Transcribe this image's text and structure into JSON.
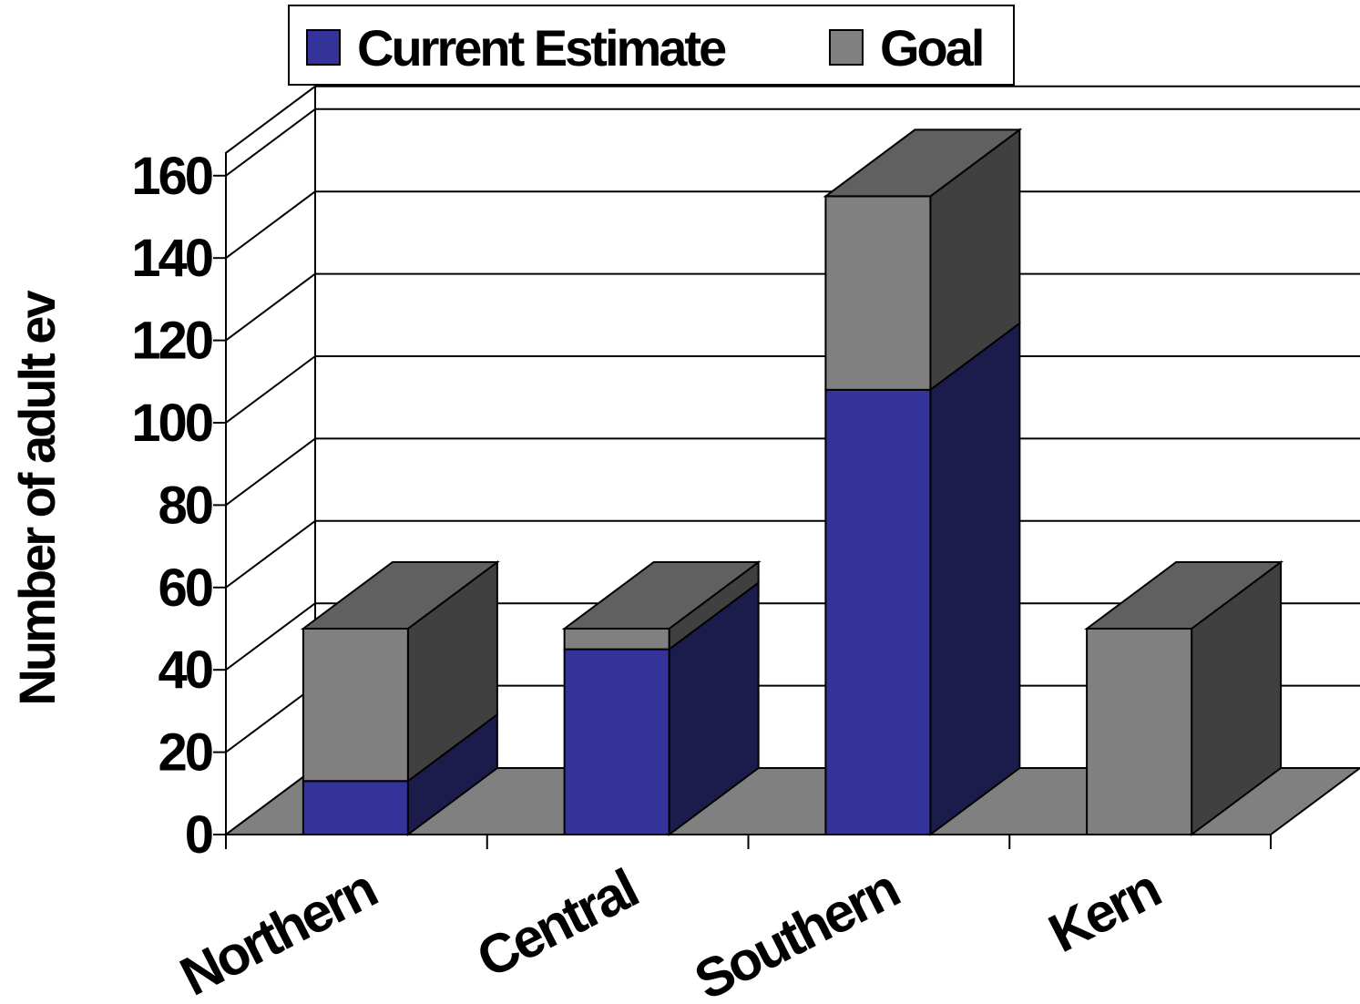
{
  "chart_data": {
    "type": "bar",
    "stacked": true,
    "three_d": true,
    "categories": [
      "Northern",
      "Central",
      "Southern",
      "Kern"
    ],
    "series": [
      {
        "name": "Current Estimate",
        "values": [
          13,
          45,
          108,
          0
        ]
      },
      {
        "name": "Goal",
        "values": [
          37,
          5,
          47,
          50
        ]
      }
    ],
    "title": "",
    "xlabel": "",
    "ylabel": "Number of adult ev",
    "ylim": [
      0,
      160
    ],
    "yticks": [
      0,
      20,
      40,
      60,
      80,
      100,
      120,
      140,
      160
    ],
    "grid": true,
    "legend": {
      "position": "top-center"
    }
  },
  "colors": {
    "current_front": "#333399",
    "current_side": "#1C1C4C",
    "goal_front": "#808080",
    "goal_side": "#404040",
    "goal_top": "#606060",
    "floor": "#808080",
    "grid": "#000000"
  }
}
